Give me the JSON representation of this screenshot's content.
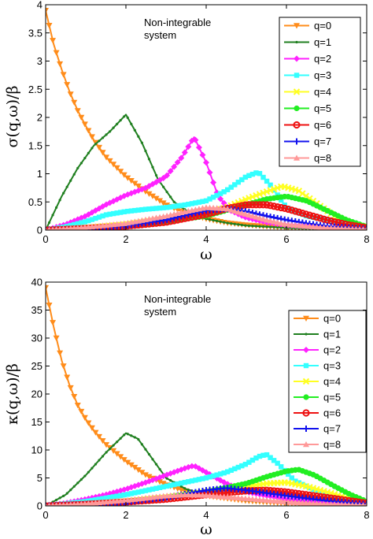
{
  "series_style": [
    {
      "color": "#ff8c1a",
      "marker": "triangle-down"
    },
    {
      "color": "#1f7f1f",
      "marker": "dot"
    },
    {
      "color": "#ff22ff",
      "marker": "diamond"
    },
    {
      "color": "#33ffff",
      "marker": "square"
    },
    {
      "color": "#ffff22",
      "marker": "cross"
    },
    {
      "color": "#22ee22",
      "marker": "circle-filled"
    },
    {
      "color": "#ee1111",
      "marker": "circle-open"
    },
    {
      "color": "#1111ee",
      "marker": "plus"
    },
    {
      "color": "#ff9999",
      "marker": "triangle-up"
    }
  ],
  "chart_data": [
    {
      "type": "line",
      "title": "",
      "annotation": [
        "Non-integrable",
        "system"
      ],
      "xlabel": "ω",
      "ylabel": "σ(q,ω)/β",
      "xlim": [
        0,
        8
      ],
      "ylim": [
        0,
        4
      ],
      "xticks": [
        0,
        2,
        4,
        6,
        8
      ],
      "yticks": [
        0,
        0.5,
        1,
        1.5,
        2,
        2.5,
        3,
        3.5,
        4
      ],
      "ytick_labels": [
        "0",
        "0.5",
        "1",
        "1.5",
        "2",
        "2.5",
        "3",
        "3.5",
        "4"
      ],
      "legend_position": "top-right",
      "grid": false,
      "series": [
        {
          "name": "q=0",
          "x": [
            0,
            0.2,
            0.4,
            0.6,
            0.8,
            1.0,
            1.2,
            1.5,
            2.0,
            2.5,
            3.0,
            3.5,
            4.0,
            4.5,
            5.0,
            6.0,
            7.0,
            8.0
          ],
          "y": [
            3.9,
            3.3,
            2.85,
            2.45,
            2.12,
            1.85,
            1.6,
            1.3,
            0.95,
            0.68,
            0.45,
            0.3,
            0.2,
            0.13,
            0.09,
            0.04,
            0.02,
            0.01
          ]
        },
        {
          "name": "q=1",
          "x": [
            0,
            0.4,
            0.8,
            1.2,
            1.6,
            2.0,
            2.4,
            2.8,
            3.2,
            3.6,
            4.0,
            4.5,
            5.0,
            6.0,
            7.0,
            8.0
          ],
          "y": [
            0,
            0.6,
            1.1,
            1.5,
            1.75,
            2.05,
            1.55,
            0.9,
            0.5,
            0.3,
            0.2,
            0.13,
            0.08,
            0.04,
            0.02,
            0.01
          ]
        },
        {
          "name": "q=2",
          "x": [
            0,
            0.5,
            1.0,
            1.5,
            2.0,
            2.5,
            3.0,
            3.4,
            3.7,
            4.0,
            4.3,
            4.6,
            5.0,
            5.5,
            6.0,
            7.0,
            8.0
          ],
          "y": [
            0,
            0.1,
            0.25,
            0.45,
            0.62,
            0.75,
            0.95,
            1.3,
            1.65,
            1.2,
            0.6,
            0.35,
            0.22,
            0.14,
            0.09,
            0.05,
            0.02
          ]
        },
        {
          "name": "q=3",
          "x": [
            0,
            0.5,
            1.0,
            1.5,
            2.0,
            2.5,
            3.0,
            3.5,
            4.0,
            4.5,
            5.0,
            5.3,
            5.6,
            6.0,
            6.5,
            7.0,
            7.5,
            8.0
          ],
          "y": [
            0,
            0.06,
            0.15,
            0.27,
            0.33,
            0.37,
            0.4,
            0.45,
            0.52,
            0.7,
            0.95,
            1.03,
            0.8,
            0.4,
            0.25,
            0.18,
            0.12,
            0.06
          ]
        },
        {
          "name": "q=4",
          "x": [
            0,
            1.0,
            2.0,
            3.0,
            4.0,
            4.5,
            5.0,
            5.5,
            5.9,
            6.3,
            6.8,
            7.2,
            7.6,
            8.0
          ],
          "y": [
            0,
            0.04,
            0.1,
            0.2,
            0.3,
            0.4,
            0.55,
            0.68,
            0.78,
            0.7,
            0.45,
            0.25,
            0.12,
            0.05
          ]
        },
        {
          "name": "q=5",
          "x": [
            0,
            1.0,
            2.0,
            3.0,
            4.0,
            4.5,
            5.0,
            5.5,
            6.0,
            6.5,
            7.0,
            7.5,
            8.0
          ],
          "y": [
            0,
            0.03,
            0.08,
            0.15,
            0.25,
            0.35,
            0.45,
            0.55,
            0.6,
            0.52,
            0.35,
            0.18,
            0.06
          ]
        },
        {
          "name": "q=6",
          "x": [
            0,
            1.0,
            2.0,
            3.0,
            4.0,
            4.5,
            5.0,
            5.5,
            6.0,
            6.5,
            7.0,
            7.5,
            8.0
          ],
          "y": [
            0,
            0.03,
            0.07,
            0.14,
            0.28,
            0.38,
            0.45,
            0.45,
            0.38,
            0.28,
            0.18,
            0.1,
            0.04
          ]
        },
        {
          "name": "q=7",
          "x": [
            0,
            1.0,
            2.0,
            3.0,
            3.5,
            4.0,
            4.5,
            5.0,
            5.5,
            6.0,
            6.5,
            7.0,
            8.0
          ],
          "y": [
            0,
            0.03,
            0.08,
            0.18,
            0.27,
            0.35,
            0.38,
            0.33,
            0.25,
            0.18,
            0.12,
            0.07,
            0.02
          ]
        },
        {
          "name": "q=8",
          "x": [
            0,
            1.0,
            2.0,
            3.0,
            3.5,
            4.0,
            4.5,
            5.0,
            5.5,
            6.0,
            7.0,
            8.0
          ],
          "y": [
            0,
            0.05,
            0.12,
            0.25,
            0.33,
            0.4,
            0.38,
            0.28,
            0.18,
            0.1,
            0.04,
            0.01
          ]
        }
      ]
    },
    {
      "type": "line",
      "title": "",
      "annotation": [
        "Non-integrable",
        "system"
      ],
      "xlabel": "ω",
      "ylabel": "κ(q,ω)/β",
      "xlim": [
        0,
        8
      ],
      "ylim": [
        0,
        40
      ],
      "xticks": [
        0,
        2,
        4,
        6,
        8
      ],
      "yticks": [
        0,
        5,
        10,
        15,
        20,
        25,
        30,
        35,
        40
      ],
      "ytick_labels": [
        "0",
        "5",
        "10",
        "15",
        "20",
        "25",
        "30",
        "35",
        "40"
      ],
      "legend_position": "top-right",
      "grid": false,
      "series": [
        {
          "name": "q=0",
          "x": [
            0,
            0.2,
            0.4,
            0.6,
            0.8,
            1.0,
            1.2,
            1.5,
            2.0,
            2.5,
            3.0,
            3.5,
            4.0,
            5.0,
            6.0,
            7.0,
            8.0
          ],
          "y": [
            39,
            32,
            26,
            21.5,
            18,
            15.5,
            13.5,
            11,
            8,
            5.5,
            3.8,
            2.6,
            1.8,
            0.9,
            0.45,
            0.25,
            0.1
          ]
        },
        {
          "name": "q=1",
          "x": [
            0,
            0.5,
            1.0,
            1.5,
            2.0,
            2.3,
            2.6,
            3.0,
            3.5,
            4.0,
            5.0,
            6.0,
            7.0,
            8.0
          ],
          "y": [
            0,
            2,
            5.5,
            9.5,
            13,
            12,
            9,
            5,
            3,
            2,
            1,
            0.5,
            0.3,
            0.1
          ]
        },
        {
          "name": "q=2",
          "x": [
            0,
            0.5,
            1.0,
            1.5,
            2.0,
            2.5,
            3.0,
            3.5,
            3.7,
            4.0,
            4.5,
            5.0,
            6.0,
            7.0,
            8.0
          ],
          "y": [
            0,
            0.5,
            1.2,
            2.0,
            3.0,
            4.2,
            5.5,
            6.8,
            7.2,
            6.0,
            4.0,
            2.5,
            1.2,
            0.6,
            0.2
          ]
        },
        {
          "name": "q=3",
          "x": [
            0,
            1.0,
            2.0,
            3.0,
            4.0,
            4.5,
            5.0,
            5.3,
            5.5,
            5.8,
            6.2,
            6.8,
            7.5,
            8.0
          ],
          "y": [
            0,
            0.8,
            2.0,
            3.5,
            5.0,
            6.0,
            7.5,
            8.8,
            9.2,
            7.5,
            4.5,
            2.5,
            1.2,
            0.5
          ]
        },
        {
          "name": "q=4",
          "x": [
            0,
            1.0,
            2.0,
            3.0,
            4.0,
            5.0,
            5.5,
            6.0,
            6.5,
            7.0,
            7.5,
            8.0
          ],
          "y": [
            0,
            0.3,
            0.8,
            1.5,
            2.5,
            3.5,
            4.0,
            4.2,
            3.5,
            2.5,
            1.5,
            0.6
          ]
        },
        {
          "name": "q=5",
          "x": [
            0,
            1.0,
            2.0,
            3.0,
            4.0,
            5.0,
            5.5,
            6.0,
            6.3,
            6.7,
            7.2,
            7.6,
            8.0
          ],
          "y": [
            0,
            0.3,
            0.8,
            1.5,
            2.5,
            4.0,
            5.2,
            6.2,
            6.5,
            5.5,
            3.5,
            2.0,
            0.8
          ]
        },
        {
          "name": "q=6",
          "x": [
            0,
            1.0,
            2.0,
            3.0,
            4.0,
            5.0,
            5.5,
            6.0,
            7.0,
            8.0
          ],
          "y": [
            0,
            0.3,
            0.7,
            1.2,
            2.0,
            2.7,
            2.8,
            2.5,
            1.5,
            0.5
          ]
        },
        {
          "name": "q=7",
          "x": [
            0,
            1.0,
            2.0,
            3.0,
            4.0,
            4.5,
            5.0,
            6.0,
            7.0,
            8.0
          ],
          "y": [
            0,
            0.3,
            0.7,
            1.5,
            2.8,
            3.2,
            2.8,
            1.8,
            0.9,
            0.3
          ]
        },
        {
          "name": "q=8",
          "x": [
            0,
            1.0,
            2.0,
            3.0,
            3.5,
            4.0,
            5.0,
            6.0,
            7.0,
            8.0
          ],
          "y": [
            0,
            0.4,
            1.0,
            1.8,
            2.0,
            1.9,
            1.3,
            0.7,
            0.3,
            0.1
          ]
        }
      ]
    }
  ]
}
